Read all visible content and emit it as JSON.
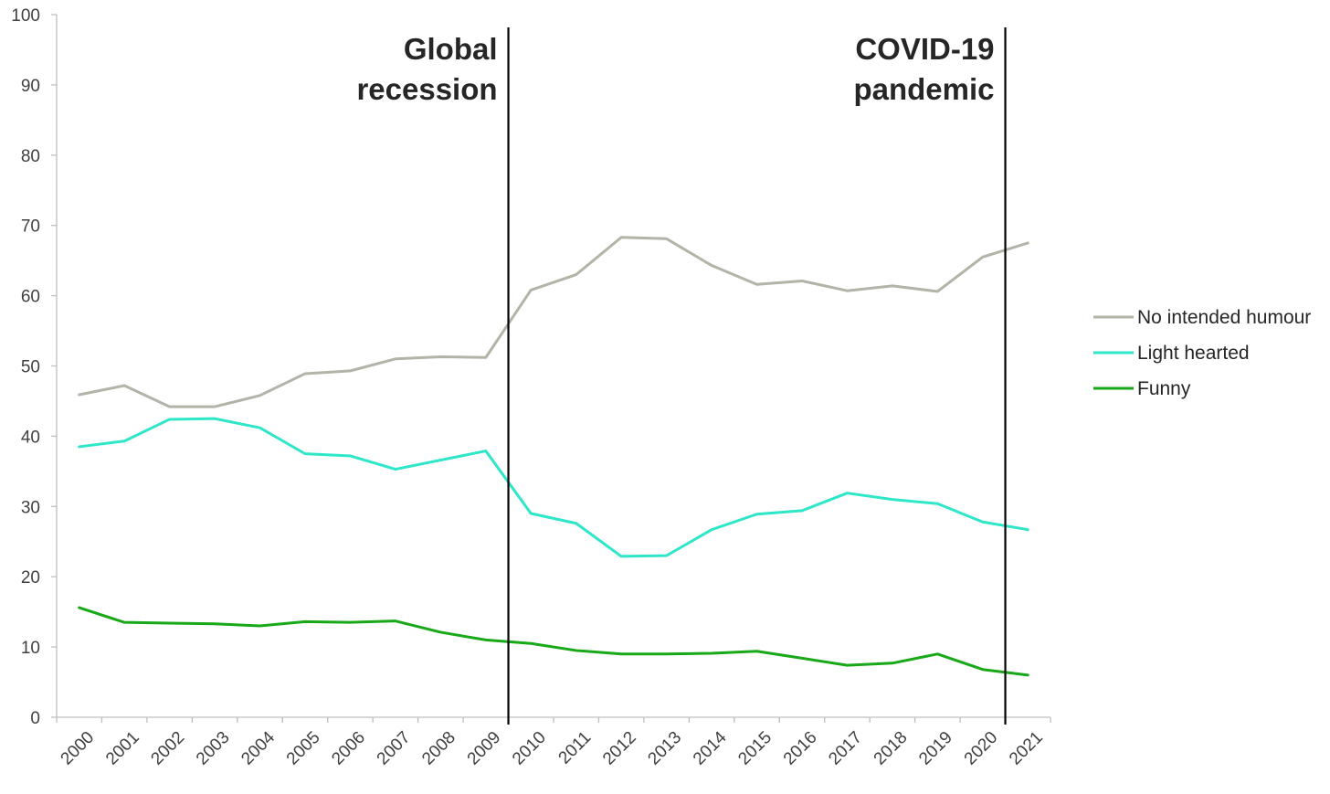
{
  "chart_data": {
    "type": "line",
    "title": "",
    "xlabel": "",
    "ylabel": "",
    "ylim": [
      0,
      100
    ],
    "yticks": [
      "0",
      "10",
      "20",
      "30",
      "40",
      "50",
      "60",
      "70",
      "80",
      "90",
      "100"
    ],
    "categories": [
      "2000",
      "2001",
      "2002",
      "2003",
      "2004",
      "2005",
      "2006",
      "2007",
      "2008",
      "2009",
      "2010",
      "2011",
      "2012",
      "2013",
      "2014",
      "2015",
      "2016",
      "2017",
      "2018",
      "2019",
      "2020",
      "2021"
    ],
    "series": [
      {
        "name": "No intended humour",
        "color": "#b3b3a8",
        "values": [
          45.9,
          47.2,
          44.2,
          44.2,
          45.8,
          48.9,
          49.3,
          51.0,
          51.3,
          51.2,
          60.8,
          63.0,
          68.3,
          68.1,
          64.3,
          61.6,
          62.1,
          60.7,
          61.4,
          60.6,
          65.5,
          67.5
        ]
      },
      {
        "name": "Light hearted",
        "color": "#2ee6c8",
        "values": [
          38.5,
          39.3,
          42.4,
          42.5,
          41.2,
          37.5,
          37.2,
          35.3,
          36.6,
          37.9,
          29.0,
          27.6,
          22.9,
          23.0,
          26.7,
          28.9,
          29.4,
          31.9,
          31.0,
          30.4,
          27.8,
          26.7
        ]
      },
      {
        "name": "Funny",
        "color": "#18a818",
        "values": [
          15.6,
          13.5,
          13.4,
          13.3,
          13.0,
          13.6,
          13.5,
          13.7,
          12.1,
          11.0,
          10.5,
          9.5,
          9.0,
          9.0,
          9.1,
          9.4,
          8.4,
          7.4,
          7.7,
          9.0,
          6.8,
          6.0
        ]
      }
    ],
    "annotations": [
      {
        "at": "2009",
        "lines": [
          "Global",
          "recession"
        ]
      },
      {
        "at": "2020",
        "lines": [
          "COVID-19",
          "pandemic"
        ]
      }
    ],
    "legend_position": "right"
  }
}
